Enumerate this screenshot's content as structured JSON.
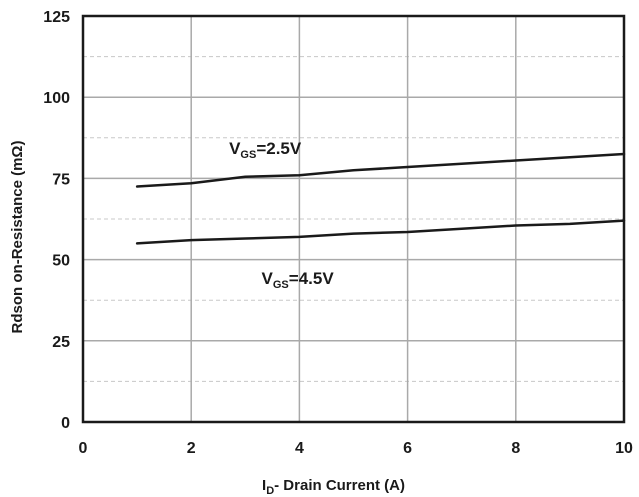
{
  "chart_data": {
    "type": "line",
    "title": "",
    "xlabel_main": "I",
    "xlabel_sub": "D",
    "xlabel_rest": "- Drain Current (A)",
    "ylabel": "Rdson on-Resistance (mΩ)",
    "xlim": [
      0,
      10
    ],
    "ylim": [
      0,
      125
    ],
    "xticks": [
      0,
      2,
      4,
      6,
      8,
      10
    ],
    "yticks": [
      0,
      25,
      50,
      75,
      100,
      125
    ],
    "grid": true,
    "series": [
      {
        "x": [
          1,
          2,
          3,
          4,
          5,
          6,
          7,
          8,
          9,
          10
        ],
        "values": [
          72.5,
          73.5,
          75.5,
          76.0,
          77.5,
          78.5,
          79.5,
          80.5,
          81.5,
          82.5
        ],
        "color": "#1a1a1a"
      },
      {
        "x": [
          1,
          2,
          3,
          4,
          5,
          6,
          7,
          8,
          9,
          10
        ],
        "values": [
          55.0,
          56.0,
          56.5,
          57.0,
          58.0,
          58.5,
          59.5,
          60.5,
          61.0,
          62.0
        ],
        "color": "#1a1a1a"
      }
    ],
    "annotations": [
      {
        "main": "V",
        "sub": "GS",
        "rest": "=2.5V",
        "x": 2.7,
        "y": 82.5
      },
      {
        "main": "V",
        "sub": "GS",
        "rest": "=4.5V",
        "x": 3.3,
        "y": 42.5
      }
    ]
  }
}
